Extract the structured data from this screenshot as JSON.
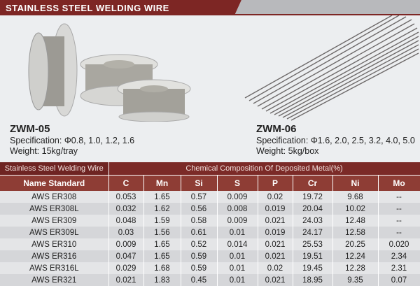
{
  "header": {
    "title": "STAINLESS STEEL WELDING WIRE"
  },
  "products": [
    {
      "name": "ZWM-05",
      "specification": "Specification: Φ0.8, 1.0, 1.2, 1.6",
      "weight": "Weight: 15kg/tray"
    },
    {
      "name": "ZWM-06",
      "specification": "Specification: Φ1.6, 2.0, 2.5, 3.2, 4.0, 5.0",
      "weight": "Weight: 5kg/box"
    }
  ],
  "table": {
    "group_headers": [
      "Stainless Steel Welding Wire",
      "Chemical Composition Of Deposited Metal(%)"
    ],
    "columns": [
      "Name Standard",
      "C",
      "Mn",
      "Si",
      "S",
      "P",
      "Cr",
      "Ni",
      "Mo"
    ],
    "rows": [
      [
        "AWS ER308",
        "0.053",
        "1.65",
        "0.57",
        "0.009",
        "0.02",
        "19.72",
        "9.68",
        "--"
      ],
      [
        "AWS ER308L",
        "0.032",
        "1.62",
        "0.56",
        "0.008",
        "0.019",
        "20.04",
        "10.02",
        "--"
      ],
      [
        "AWS ER309",
        "0.048",
        "1.59",
        "0.58",
        "0.009",
        "0.021",
        "24.03",
        "12.48",
        "--"
      ],
      [
        "AWS ER309L",
        "0.03",
        "1.56",
        "0.61",
        "0.01",
        "0.019",
        "24.17",
        "12.58",
        "--"
      ],
      [
        "AWS ER310",
        "0.009",
        "1.65",
        "0.52",
        "0.014",
        "0.021",
        "25.53",
        "20.25",
        "0.020"
      ],
      [
        "AWS ER316",
        "0.047",
        "1.65",
        "0.59",
        "0.01",
        "0.021",
        "19.51",
        "12.24",
        "2.34"
      ],
      [
        "AWS ER316L",
        "0.029",
        "1.68",
        "0.59",
        "0.01",
        "0.02",
        "19.45",
        "12.28",
        "2.31"
      ],
      [
        "AWS ER321",
        "0.021",
        "1.83",
        "0.45",
        "0.01",
        "0.021",
        "18.95",
        "9.35",
        "0.07"
      ]
    ]
  }
}
